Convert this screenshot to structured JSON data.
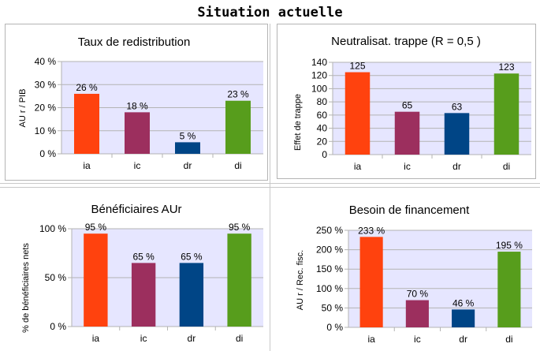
{
  "page": {
    "title": "Situation actuelle"
  },
  "chart_data": [
    {
      "type": "bar",
      "title": "Taux de redistribution",
      "ylabel": "AU r / PIB",
      "categories": [
        "ia",
        "ic",
        "dr",
        "di"
      ],
      "values": [
        26,
        18,
        5,
        23
      ],
      "data_labels": [
        "26 %",
        "18 %",
        "5 %",
        "23 %"
      ],
      "ylim": [
        0,
        40
      ],
      "yticks": [
        0,
        10,
        20,
        30,
        40
      ],
      "ytick_labels": [
        "0 %",
        "10 %",
        "20 %",
        "30 %",
        "40 %"
      ],
      "colors": [
        "#ff420e",
        "#9c2f5e",
        "#004586",
        "#579d1c"
      ],
      "plot_background": "#e6e6ff",
      "grid": true,
      "legend": "none"
    },
    {
      "type": "bar",
      "title": "Neutralisat. trappe (R = 0,5 )",
      "ylabel": "Effet de trappe",
      "categories": [
        "ia",
        "ic",
        "dr",
        "di"
      ],
      "values": [
        125,
        65,
        63,
        123
      ],
      "data_labels": [
        "125",
        "65",
        "63",
        "123"
      ],
      "ylim": [
        0,
        140
      ],
      "yticks": [
        0,
        20,
        40,
        60,
        80,
        100,
        120,
        140
      ],
      "ytick_labels": [
        "0",
        "20",
        "40",
        "60",
        "80",
        "100",
        "120",
        "140"
      ],
      "colors": [
        "#ff420e",
        "#9c2f5e",
        "#004586",
        "#579d1c"
      ],
      "plot_background": "#e6e6ff",
      "grid": true,
      "legend": "none"
    },
    {
      "type": "bar",
      "title": "Bénéficiaires AUr",
      "ylabel": "% de bénéficiaires nets",
      "categories": [
        "ia",
        "ic",
        "dr",
        "di"
      ],
      "values": [
        95,
        65,
        65,
        95
      ],
      "data_labels": [
        "95 %",
        "65 %",
        "65 %",
        "95 %"
      ],
      "ylim": [
        0,
        100
      ],
      "yticks": [
        0,
        50,
        100
      ],
      "ytick_labels": [
        "0 %",
        "50 %",
        "100 %"
      ],
      "colors": [
        "#ff420e",
        "#9c2f5e",
        "#004586",
        "#579d1c"
      ],
      "plot_background": "#e6e6ff",
      "grid": true,
      "legend": "none"
    },
    {
      "type": "bar",
      "title": "Besoin de financement",
      "ylabel": "AU r / Rec. fisc.",
      "categories": [
        "ia",
        "ic",
        "dr",
        "di"
      ],
      "values": [
        233,
        70,
        46,
        195
      ],
      "data_labels": [
        "233 %",
        "70 %",
        "46 %",
        "195 %"
      ],
      "ylim": [
        0,
        250
      ],
      "yticks": [
        0,
        50,
        100,
        150,
        200,
        250
      ],
      "ytick_labels": [
        "0 %",
        "50 %",
        "100 %",
        "150 %",
        "200 %",
        "250 %"
      ],
      "colors": [
        "#ff420e",
        "#9c2f5e",
        "#004586",
        "#579d1c"
      ],
      "plot_background": "#e6e6ff",
      "grid": true,
      "legend": "none"
    }
  ]
}
